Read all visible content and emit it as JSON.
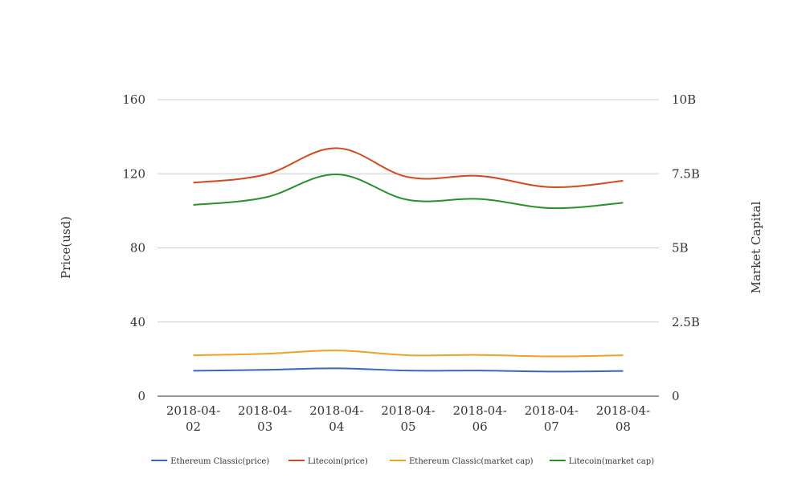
{
  "chart_data": {
    "type": "line",
    "title": "",
    "x": [
      "2018-04-02",
      "2018-04-03",
      "2018-04-04",
      "2018-04-05",
      "2018-04-06",
      "2018-04-07",
      "2018-04-08"
    ],
    "x_tick_labels": [
      [
        "2018-04-",
        "02"
      ],
      [
        "2018-04-",
        "03"
      ],
      [
        "2018-04-",
        "04"
      ],
      [
        "2018-04-",
        "05"
      ],
      [
        "2018-04-",
        "06"
      ],
      [
        "2018-04-",
        "07"
      ],
      [
        "2018-04-",
        "08"
      ]
    ],
    "ylabel_left": "Price(usd)",
    "ylabel_right": "Market Capital",
    "ylim_left": [
      0,
      160
    ],
    "yticks_left": [
      "0",
      "40",
      "80",
      "120",
      "160"
    ],
    "ylim_right": [
      0,
      10000000000
    ],
    "yticks_right": [
      "0",
      "2.5B",
      "5B",
      "7.5B",
      "10B"
    ],
    "grid": true,
    "legend_position": "bottom",
    "series": [
      {
        "name": "Ethereum Classic(price)",
        "axis": "left",
        "color": "#3a66b8",
        "values": [
          13.7,
          14.2,
          15.0,
          13.8,
          13.8,
          13.3,
          13.6
        ]
      },
      {
        "name": "Litecoin(price)",
        "axis": "left",
        "color": "#d04a20",
        "values": [
          115.2,
          119.5,
          133.8,
          118.2,
          118.8,
          112.8,
          116.2
        ]
      },
      {
        "name": "Ethereum Classic(market cap)",
        "axis": "right",
        "color": "#f0a020",
        "values": [
          1380000000,
          1430000000,
          1540000000,
          1380000000,
          1390000000,
          1340000000,
          1380000000
        ]
      },
      {
        "name": "Litecoin(market cap)",
        "axis": "right",
        "color": "#2a8f2a",
        "values": [
          6450000000,
          6700000000,
          7480000000,
          6620000000,
          6650000000,
          6340000000,
          6520000000
        ]
      }
    ]
  }
}
